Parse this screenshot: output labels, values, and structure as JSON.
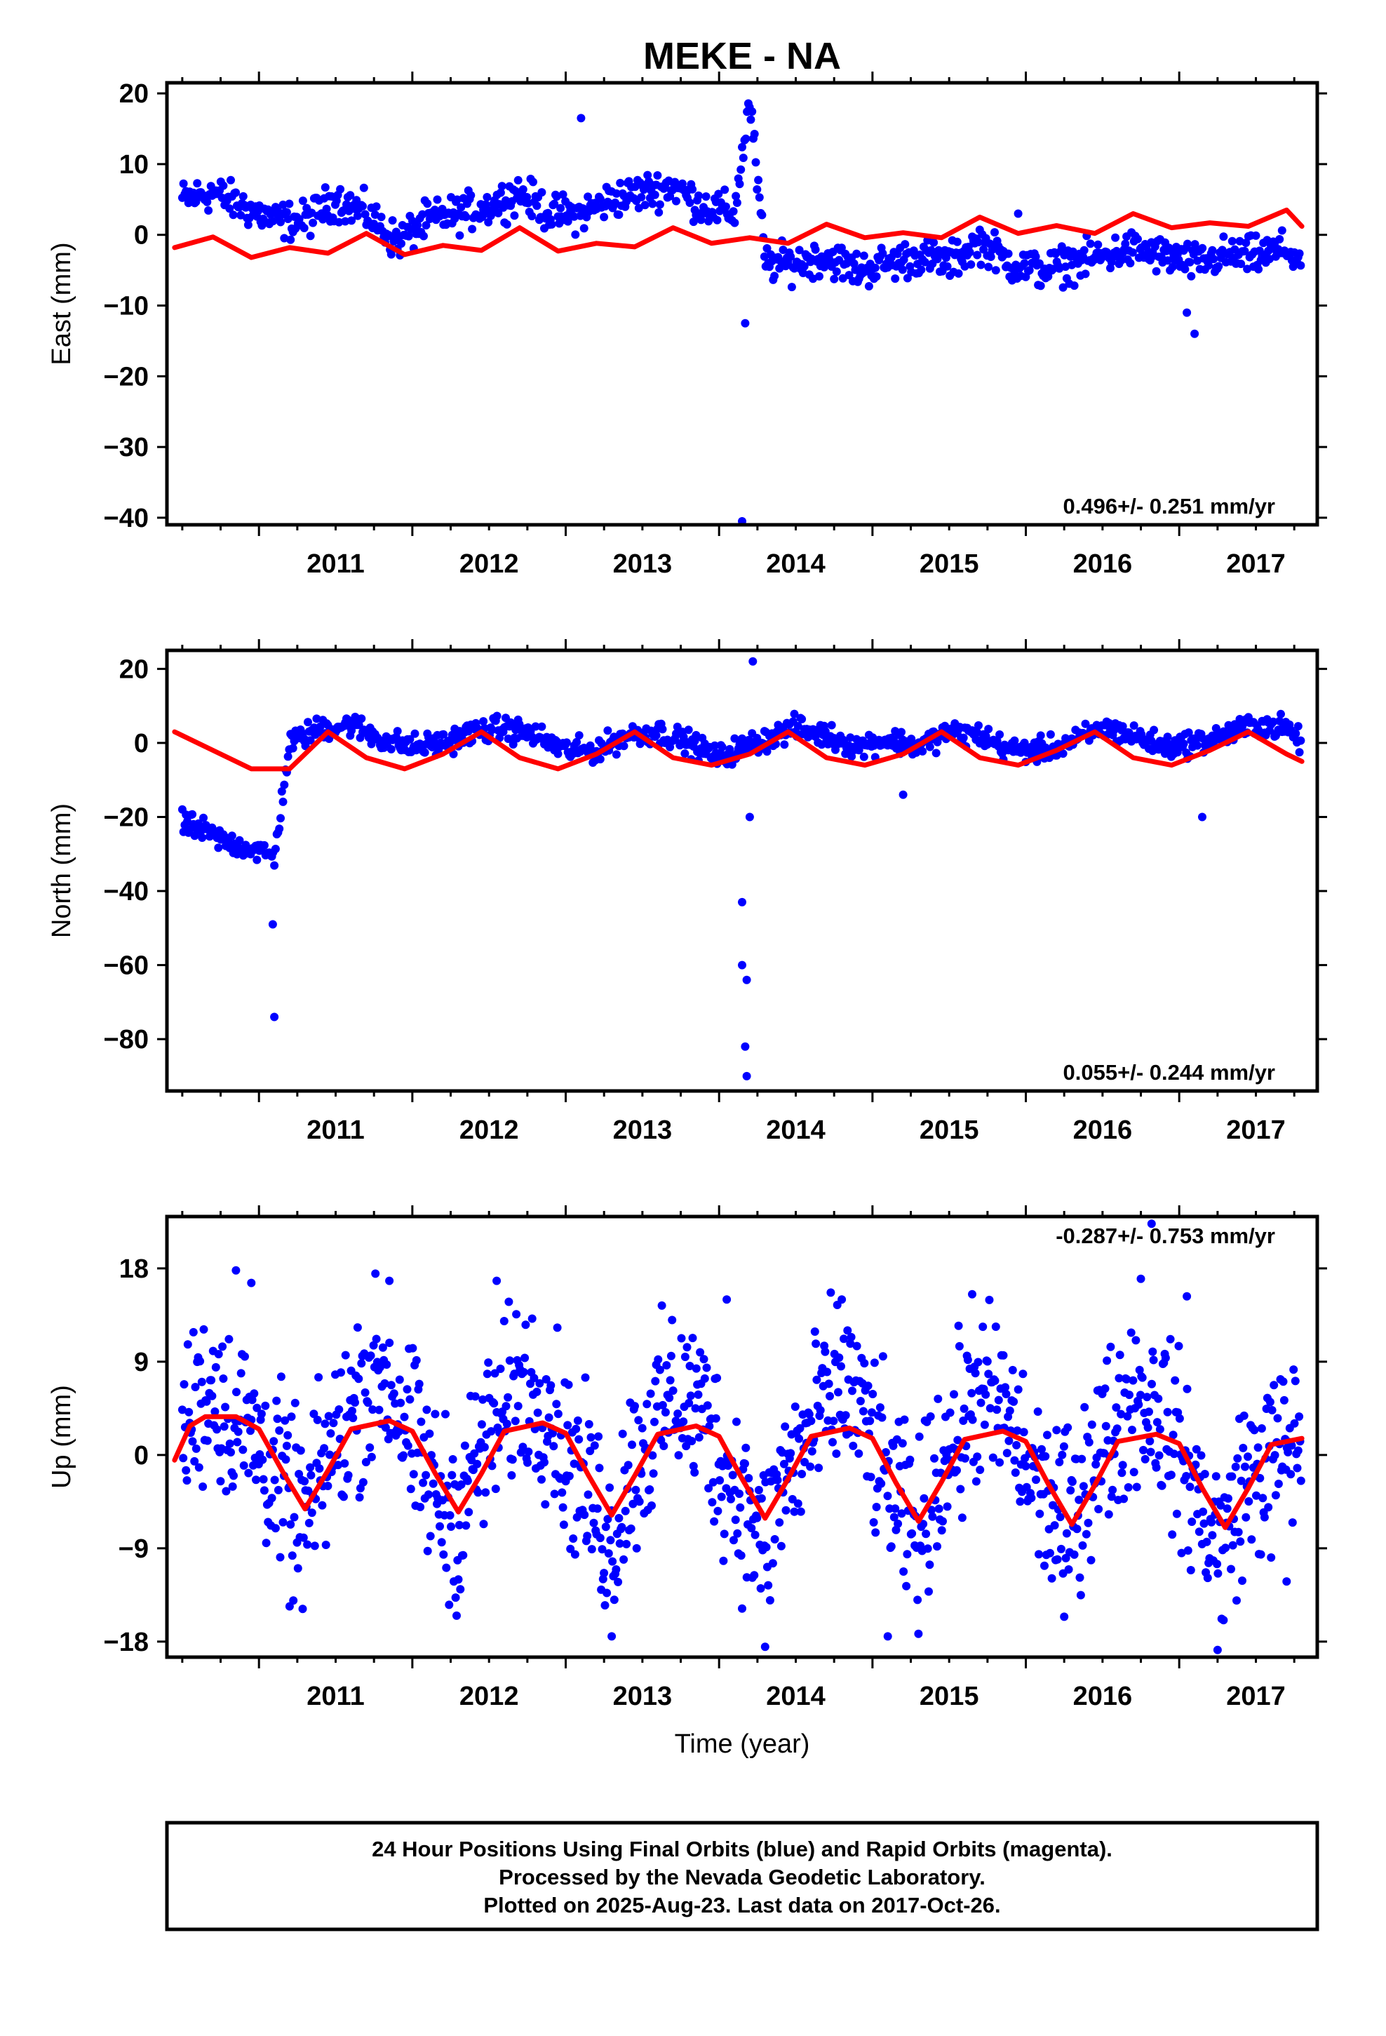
{
  "title": "MEKE - NA",
  "colors": {
    "final_orbits": "#0000ff",
    "model_fit": "#ff0000",
    "frame": "#000000"
  },
  "chart_data": [
    {
      "type": "scatter",
      "ylabel": "East (mm)",
      "xlabel": "",
      "xlim": [
        2010.4,
        2017.9
      ],
      "ylim": [
        -41,
        21.5
      ],
      "yticks": [
        20,
        10,
        0,
        -10,
        -20,
        -30,
        -40
      ],
      "xticks": [
        2011,
        2012,
        2013,
        2014,
        2015,
        2016,
        2017
      ],
      "rate": "0.496+/- 0.251 mm/yr",
      "rate_position": "bottom-right",
      "series": [
        {
          "kind": "points",
          "x": [
            2010.5,
            2010.7,
            2010.9,
            2011.1,
            2011.3,
            2011.5,
            2011.7,
            2011.9,
            2012.1,
            2012.3,
            2012.5,
            2012.7,
            2012.9,
            2013.1,
            2013.3,
            2013.5,
            2013.7,
            2013.9,
            2014.1,
            2014.2,
            2014.3,
            2014.5,
            2014.7,
            2014.9,
            2015.1,
            2015.3,
            2015.5,
            2015.7,
            2015.9,
            2016.1,
            2016.3,
            2016.5,
            2016.7,
            2016.9,
            2017.1,
            2017.3,
            2017.5,
            2017.7,
            2017.8
          ],
          "y": [
            5,
            6,
            4,
            2,
            2,
            5,
            3,
            -1,
            2,
            3,
            4,
            6,
            3,
            3,
            5,
            6,
            7,
            4,
            3,
            19,
            -4,
            -4,
            -3,
            -5,
            -4,
            -3,
            -4,
            -1,
            -4,
            -5,
            -4,
            -3,
            -2,
            -3,
            -4,
            -3,
            -3,
            -2,
            -4
          ],
          "outliers": [
            [
              2013.1,
              16.5
            ],
            [
              2014.17,
              -12.5
            ],
            [
              2014.15,
              -40.5
            ],
            [
              2015.95,
              3
            ],
            [
              2017.1,
              -14
            ],
            [
              2017.05,
              -11
            ]
          ]
        },
        {
          "kind": "line",
          "x": [
            2010.45,
            2010.7,
            2010.95,
            2011.2,
            2011.45,
            2011.7,
            2011.95,
            2012.2,
            2012.45,
            2012.7,
            2012.95,
            2013.2,
            2013.45,
            2013.7,
            2013.95,
            2014.2,
            2014.45,
            2014.7,
            2014.95,
            2015.2,
            2015.45,
            2015.7,
            2015.95,
            2016.2,
            2016.45,
            2016.7,
            2016.95,
            2017.2,
            2017.45,
            2017.7,
            2017.8
          ],
          "y": [
            -1.8,
            -0.3,
            -3.2,
            -1.8,
            -2.6,
            0.2,
            -2.8,
            -1.5,
            -2.2,
            1.0,
            -2.3,
            -1.2,
            -1.7,
            1.0,
            -1.2,
            -0.4,
            -1.2,
            1.5,
            -0.4,
            0.3,
            -0.4,
            2.5,
            0.2,
            1.3,
            0.2,
            3.0,
            1.0,
            1.7,
            1.2,
            3.5,
            1.2
          ]
        }
      ]
    },
    {
      "type": "scatter",
      "ylabel": "North (mm)",
      "xlabel": "",
      "xlim": [
        2010.4,
        2017.9
      ],
      "ylim": [
        -94,
        25
      ],
      "yticks": [
        20,
        0,
        -20,
        -40,
        -60,
        -80
      ],
      "xticks": [
        2011,
        2012,
        2013,
        2014,
        2015,
        2016,
        2017
      ],
      "rate": "0.055+/- 0.244 mm/yr",
      "rate_position": "bottom-right",
      "series": [
        {
          "kind": "points",
          "x": [
            2010.5,
            2010.6,
            2010.7,
            2010.8,
            2010.9,
            2011.0,
            2011.1,
            2011.2,
            2011.4,
            2011.6,
            2011.8,
            2012.0,
            2012.2,
            2012.4,
            2012.6,
            2012.8,
            2013.0,
            2013.2,
            2013.4,
            2013.6,
            2013.8,
            2014.0,
            2014.1,
            2014.3,
            2014.5,
            2014.7,
            2014.9,
            2015.1,
            2015.3,
            2015.5,
            2015.7,
            2015.9,
            2016.1,
            2016.3,
            2016.5,
            2016.7,
            2016.9,
            2017.1,
            2017.3,
            2017.5,
            2017.7,
            2017.8
          ],
          "y": [
            -22,
            -23,
            -25,
            -27,
            -28,
            -29,
            -31,
            0,
            4,
            5,
            1,
            -1,
            0,
            3,
            4,
            2,
            -2,
            -2,
            2,
            3,
            0,
            -4,
            -2,
            1,
            4,
            2,
            -1,
            1,
            -1,
            3,
            2,
            -2,
            -2,
            0,
            4,
            2,
            -1,
            0,
            2,
            5,
            4,
            0
          ],
          "outliers": [
            [
              2011.09,
              -49
            ],
            [
              2011.1,
              -74
            ],
            [
              2014.15,
              -43
            ],
            [
              2014.15,
              -60
            ],
            [
              2014.18,
              -64
            ],
            [
              2014.17,
              -82
            ],
            [
              2014.18,
              -90
            ],
            [
              2014.22,
              22
            ],
            [
              2014.2,
              -20
            ],
            [
              2015.2,
              -14
            ],
            [
              2017.15,
              -20
            ]
          ]
        },
        {
          "kind": "line",
          "x": [
            2010.45,
            2010.7,
            2010.95,
            2011.2,
            2011.45,
            2011.7,
            2011.95,
            2012.2,
            2012.45,
            2012.7,
            2012.95,
            2013.2,
            2013.45,
            2013.7,
            2013.95,
            2014.2,
            2014.45,
            2014.7,
            2014.95,
            2015.2,
            2015.45,
            2015.7,
            2015.95,
            2016.2,
            2016.45,
            2016.7,
            2016.95,
            2017.2,
            2017.45,
            2017.7,
            2017.8
          ],
          "y": [
            3,
            -2,
            -7,
            -7,
            3,
            -4,
            -7,
            -3,
            3,
            -4,
            -7,
            -3,
            3,
            -4,
            -6,
            -3,
            3,
            -4,
            -6,
            -3,
            3,
            -4,
            -6,
            -2,
            3,
            -4,
            -6,
            -2,
            3,
            -3,
            -5
          ]
        }
      ]
    },
    {
      "type": "scatter",
      "ylabel": "Up (mm)",
      "xlabel": "Time (year)",
      "xlim": [
        2010.4,
        2017.9
      ],
      "ylim": [
        -19.5,
        23
      ],
      "yticks": [
        18,
        9,
        0,
        -9,
        -18
      ],
      "xticks": [
        2011,
        2012,
        2013,
        2014,
        2015,
        2016,
        2017
      ],
      "rate": "-0.287+/- 0.753 mm/yr",
      "rate_position": "top-right",
      "series": [
        {
          "kind": "points",
          "x": [
            2010.5,
            2010.6,
            2010.7,
            2010.8,
            2010.9,
            2011.0,
            2011.2,
            2011.3,
            2011.4,
            2011.6,
            2011.7,
            2011.8,
            2011.9,
            2012.0,
            2012.2,
            2012.3,
            2012.4,
            2012.6,
            2012.7,
            2012.8,
            2012.9,
            2013.0,
            2013.2,
            2013.3,
            2013.4,
            2013.6,
            2013.7,
            2013.8,
            2013.9,
            2014.0,
            2014.2,
            2014.3,
            2014.4,
            2014.6,
            2014.7,
            2014.8,
            2014.9,
            2015.0,
            2015.2,
            2015.3,
            2015.4,
            2015.6,
            2015.7,
            2015.8,
            2015.9,
            2016.0,
            2016.2,
            2016.3,
            2016.4,
            2016.6,
            2016.7,
            2016.8,
            2016.9,
            2017.0,
            2017.2,
            2017.3,
            2017.4,
            2017.6,
            2017.7,
            2017.8
          ],
          "y": [
            2,
            5,
            7,
            4,
            3,
            1,
            -4,
            -7,
            -2,
            4,
            7,
            8,
            5,
            1,
            -5,
            -6,
            -1,
            4,
            7,
            6,
            5,
            0,
            -5,
            -9,
            -2,
            3,
            6,
            5,
            4,
            0,
            -6,
            -9,
            -3,
            2,
            5,
            7,
            5,
            1,
            -6,
            -8,
            -2,
            3,
            6,
            5,
            3,
            -1,
            -6,
            -7,
            -1,
            3,
            6,
            5,
            4,
            0,
            -7,
            -9,
            -3,
            -1,
            1,
            2
          ],
          "outliers": [
            [
              2010.85,
              17.8
            ],
            [
              2010.95,
              16.6
            ],
            [
              2011.2,
              -14.6
            ],
            [
              2011.85,
              16.8
            ],
            [
              2012.55,
              16.8
            ],
            [
              2012.3,
              -12
            ],
            [
              2013.3,
              -17.5
            ],
            [
              2014.05,
              15
            ],
            [
              2014.3,
              -18.5
            ],
            [
              2014.8,
              15
            ],
            [
              2015.1,
              -17.5
            ],
            [
              2015.65,
              15.5
            ],
            [
              2016.25,
              -15.6
            ],
            [
              2016.75,
              17
            ],
            [
              2016.82,
              22.3
            ],
            [
              2017.05,
              15.3
            ],
            [
              2017.25,
              -18.8
            ],
            [
              2017.7,
              -12.2
            ]
          ]
        },
        {
          "kind": "line",
          "x": [
            2010.45,
            2010.55,
            2010.65,
            2010.85,
            2011.0,
            2011.15,
            2011.3,
            2011.45,
            2011.6,
            2011.85,
            2012.0,
            2012.15,
            2012.3,
            2012.45,
            2012.6,
            2012.85,
            2013.0,
            2013.15,
            2013.3,
            2013.45,
            2013.6,
            2013.85,
            2014.0,
            2014.15,
            2014.3,
            2014.45,
            2014.6,
            2014.85,
            2015.0,
            2015.15,
            2015.3,
            2015.45,
            2015.6,
            2015.85,
            2016.0,
            2016.15,
            2016.3,
            2016.45,
            2016.6,
            2016.85,
            2017.0,
            2017.15,
            2017.3,
            2017.45,
            2017.6,
            2017.8
          ],
          "y": [
            -0.5,
            2.8,
            3.7,
            3.7,
            2.5,
            -1.5,
            -5.2,
            -1.5,
            2.5,
            3.3,
            2.3,
            -1.8,
            -5.5,
            -1.8,
            2.3,
            3.1,
            2.1,
            -2.0,
            -5.8,
            -2.0,
            2.0,
            2.8,
            1.8,
            -2.3,
            -6.1,
            -2.3,
            1.8,
            2.6,
            1.6,
            -2.6,
            -6.4,
            -2.6,
            1.5,
            2.3,
            1.3,
            -2.9,
            -6.7,
            -2.9,
            1.3,
            2.0,
            1.1,
            -3.2,
            -7.0,
            -3.2,
            1.0,
            1.6
          ]
        }
      ]
    }
  ],
  "footer": {
    "line1": "24 Hour Positions Using Final Orbits (blue) and Rapid Orbits (magenta).",
    "line2": "Processed by the Nevada Geodetic Laboratory.",
    "line3": "Plotted on 2025-Aug-23. Last data on 2017-Oct-26."
  }
}
